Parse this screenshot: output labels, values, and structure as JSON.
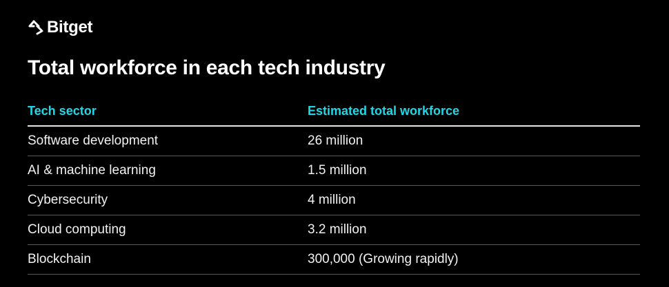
{
  "brand": {
    "name": "Bitget",
    "accent": "#1fd8e8"
  },
  "title": "Total workforce in each tech industry",
  "chart_data": {
    "type": "table",
    "title": "Total workforce in each tech industry",
    "columns": [
      "Tech sector",
      "Estimated total workforce"
    ],
    "rows": [
      [
        "Software development",
        "26 million"
      ],
      [
        "AI & machine learning",
        "1.5 million"
      ],
      [
        "Cybersecurity",
        "4 million"
      ],
      [
        "Cloud computing",
        "3.2 million"
      ],
      [
        "Blockchain",
        "300,000 (Growing rapidly)"
      ]
    ]
  }
}
